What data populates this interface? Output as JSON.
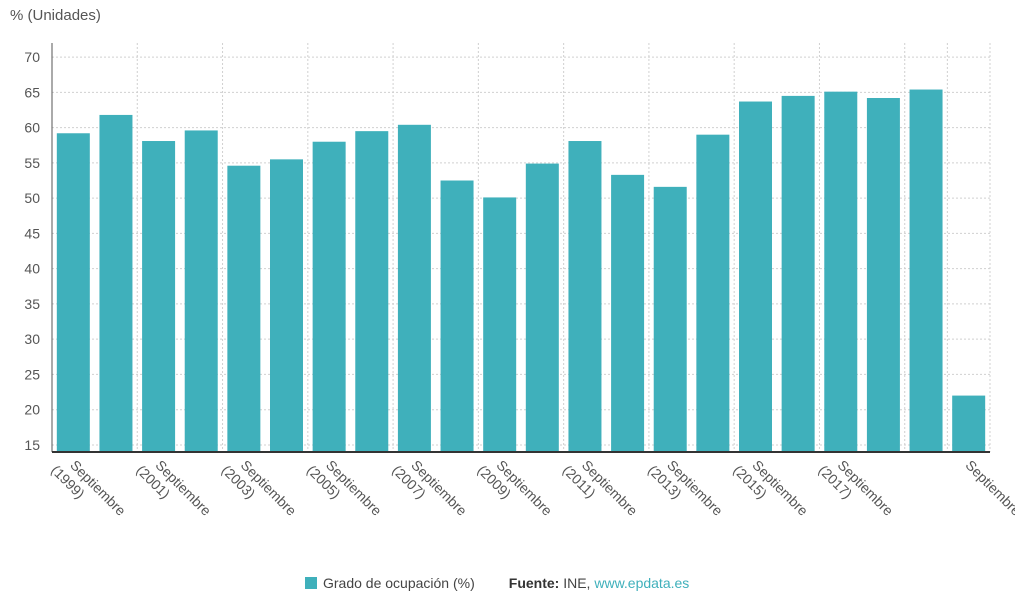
{
  "chart_data": {
    "type": "bar",
    "ylabel": "% (Unidades)",
    "ylim": [
      14,
      72
    ],
    "yticks": [
      15,
      20,
      25,
      30,
      35,
      40,
      45,
      50,
      55,
      60,
      65,
      70
    ],
    "grid": true,
    "bar_color": "#3fb0bb",
    "categories": [
      "Septiembre (1999)",
      "",
      "Septiembre (2001)",
      "",
      "Septiembre (2003)",
      "",
      "Septiembre (2005)",
      "",
      "Septiembre (2007)",
      "",
      "Septiembre (2009)",
      "",
      "Septiembre (2011)",
      "",
      "Septiembre (2013)",
      "",
      "Septiembre (2015)",
      "",
      "Septiembre (2017)",
      "",
      "",
      "Septiembre"
    ],
    "tick_labels": [
      {
        "index": 0,
        "lines": [
          "Septiembre",
          "(1999)"
        ]
      },
      {
        "index": 2,
        "lines": [
          "Septiembre",
          "(2001)"
        ]
      },
      {
        "index": 4,
        "lines": [
          "Septiembre",
          "(2003)"
        ]
      },
      {
        "index": 6,
        "lines": [
          "Septiembre",
          "(2005)"
        ]
      },
      {
        "index": 8,
        "lines": [
          "Septiembre",
          "(2007)"
        ]
      },
      {
        "index": 10,
        "lines": [
          "Septiembre",
          "(2009)"
        ]
      },
      {
        "index": 12,
        "lines": [
          "Septiembre",
          "(2011)"
        ]
      },
      {
        "index": 14,
        "lines": [
          "Septiembre",
          "(2013)"
        ]
      },
      {
        "index": 16,
        "lines": [
          "Septiembre",
          "(2015)"
        ]
      },
      {
        "index": 18,
        "lines": [
          "Septiembre",
          "(2017)"
        ]
      },
      {
        "index": 21,
        "lines": [
          "Septiembre"
        ]
      }
    ],
    "series": [
      {
        "name": "Grado de ocupación (%)",
        "values": [
          59.2,
          61.8,
          58.1,
          59.6,
          54.6,
          55.5,
          58.0,
          59.5,
          60.4,
          52.5,
          50.1,
          54.9,
          58.1,
          53.3,
          51.6,
          59.0,
          63.7,
          64.5,
          65.1,
          64.2,
          65.4,
          22.0
        ]
      }
    ],
    "legend_position": "bottom"
  },
  "legend": {
    "series_label": "Grado de ocupación (%)",
    "color": "#3fb0bb"
  },
  "source": {
    "label": "Fuente:",
    "text": " INE, ",
    "link": "www.epdata.es"
  }
}
